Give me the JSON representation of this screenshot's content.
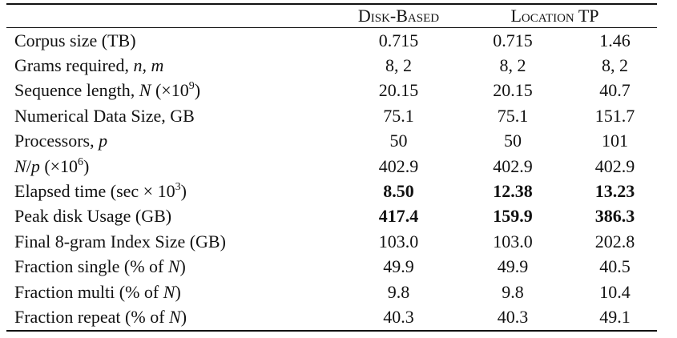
{
  "table": {
    "headers": [
      "Disk-Based",
      "Location TP"
    ],
    "rows": [
      {
        "label": [
          "Corpus size (TB)"
        ],
        "values": [
          "0.715",
          "0.715",
          "1.46"
        ]
      },
      {
        "label": [
          "Grams required, ",
          "n, m"
        ],
        "values": [
          "8, 2",
          "8, 2",
          "8, 2"
        ]
      },
      {
        "label": [
          "Sequence length, ",
          "N",
          " (×10",
          "9",
          ")"
        ],
        "values": [
          "20.15",
          "20.15",
          "40.7"
        ]
      },
      {
        "label": [
          "Numerical Data Size, GB"
        ],
        "values": [
          "75.1",
          "75.1",
          "151.7"
        ]
      },
      {
        "label": [
          "Processors, ",
          "p"
        ],
        "values": [
          "50",
          "50",
          "101"
        ]
      },
      {
        "label": [
          "N",
          "/",
          "p",
          " (×10",
          "6",
          ")"
        ],
        "values": [
          "402.9",
          "402.9",
          "402.9"
        ]
      },
      {
        "label": [
          "Elapsed time (sec × 10",
          "3",
          ")"
        ],
        "values": [
          "8.50",
          "12.38",
          "13.23"
        ]
      },
      {
        "label": [
          "Peak disk Usage (GB)"
        ],
        "values": [
          "417.4",
          "159.9",
          "386.3"
        ]
      },
      {
        "label": [
          "Final 8-gram Index Size (GB)"
        ],
        "values": [
          "103.0",
          "103.0",
          "202.8"
        ]
      },
      {
        "label": [
          "Fraction single (% of ",
          "N",
          ")"
        ],
        "values": [
          "49.9",
          "49.9",
          "40.5"
        ]
      },
      {
        "label": [
          "Fraction multi (% of ",
          "N",
          ")"
        ],
        "values": [
          "9.8",
          "9.8",
          "10.4"
        ]
      },
      {
        "label": [
          "Fraction repeat (% of ",
          "N",
          ")"
        ],
        "values": [
          "40.3",
          "40.3",
          "49.1"
        ]
      }
    ]
  }
}
